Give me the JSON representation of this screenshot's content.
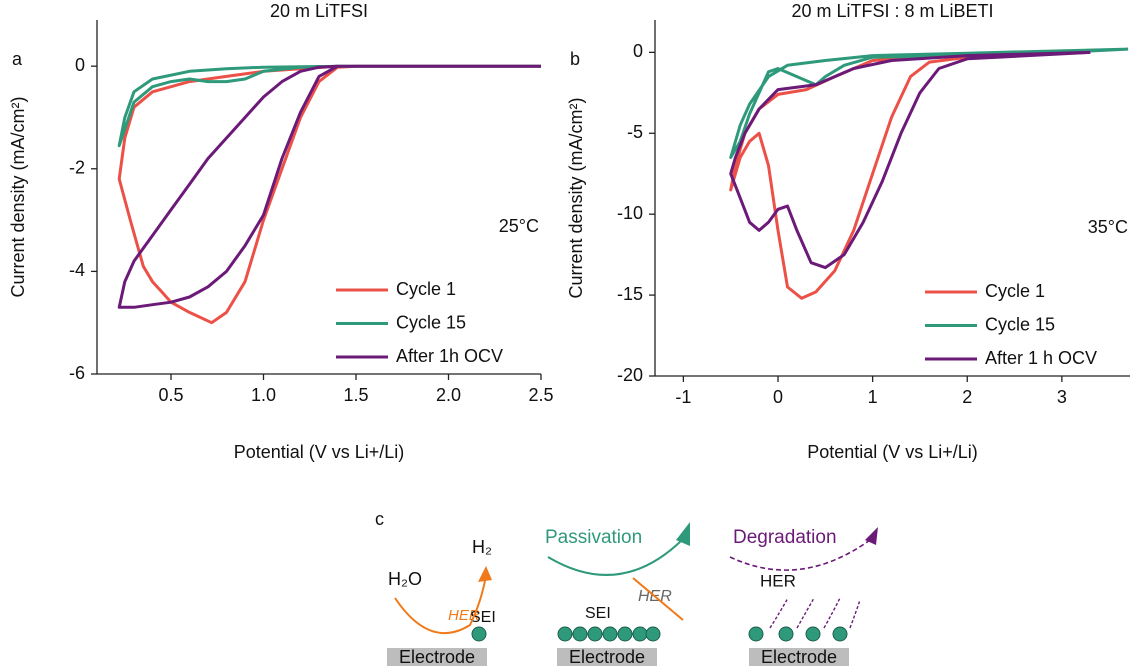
{
  "chart_data": [
    {
      "type": "line",
      "panel": "a",
      "title": "20 m LiTFSI",
      "x_label": "Potential (V vs Li+/Li)",
      "y_label": "Current density (mA/cm²)",
      "annotation": "25°C",
      "xlim": [
        0.1,
        2.5
      ],
      "ylim": [
        -6,
        0.9
      ],
      "xticks": [
        0.5,
        {
          "value": 1,
          "label": "1.0"
        },
        1.5,
        {
          "value": 2,
          "label": "2.0"
        },
        2.5
      ],
      "yticks": [
        -6,
        -4,
        -2,
        0
      ],
      "legend": "lower right",
      "series": [
        {
          "name": "Cycle 1",
          "color": "#ec5147",
          "x": [
            2.5,
            2.0,
            1.5,
            1.4,
            1.3,
            1.2,
            1.1,
            1.0,
            0.9,
            0.8,
            0.72,
            0.6,
            0.5,
            0.45,
            0.4,
            0.35,
            0.28,
            0.22,
            0.25,
            0.3,
            0.4,
            0.6,
            0.8,
            1.0,
            1.2,
            1.4
          ],
          "values": [
            0,
            0,
            0,
            -0.02,
            -0.3,
            -1.0,
            -2.0,
            -3.0,
            -4.2,
            -4.8,
            -5.0,
            -4.8,
            -4.6,
            -4.4,
            -4.2,
            -3.9,
            -3.0,
            -2.2,
            -1.4,
            -0.8,
            -0.5,
            -0.3,
            -0.2,
            -0.1,
            -0.05,
            0
          ]
        },
        {
          "name": "Cycle 15",
          "color": "#2f9a7b",
          "x": [
            2.5,
            1.4,
            1.2,
            1.0,
            0.9,
            0.8,
            0.7,
            0.6,
            0.5,
            0.4,
            0.3,
            0.22,
            0.25,
            0.3,
            0.4,
            0.6,
            0.8,
            1.0,
            1.4
          ],
          "values": [
            0,
            0,
            -0.02,
            -0.1,
            -0.25,
            -0.3,
            -0.3,
            -0.25,
            -0.3,
            -0.4,
            -0.7,
            -1.55,
            -1.0,
            -0.5,
            -0.25,
            -0.1,
            -0.05,
            -0.02,
            0
          ]
        },
        {
          "name": "After 1h OCV",
          "color": "#6b1a78",
          "x": [
            2.5,
            1.4,
            1.3,
            1.2,
            1.1,
            1.0,
            0.9,
            0.8,
            0.7,
            0.6,
            0.5,
            0.4,
            0.3,
            0.22,
            0.25,
            0.3,
            0.4,
            0.5,
            0.6,
            0.7,
            0.8,
            0.9,
            1.0,
            1.1,
            1.2,
            1.3,
            1.4
          ],
          "values": [
            0,
            0,
            -0.2,
            -0.9,
            -1.8,
            -2.9,
            -3.5,
            -4.0,
            -4.3,
            -4.5,
            -4.6,
            -4.65,
            -4.7,
            -4.7,
            -4.2,
            -3.8,
            -3.3,
            -2.8,
            -2.3,
            -1.8,
            -1.4,
            -1.0,
            -0.6,
            -0.3,
            -0.1,
            -0.02,
            0
          ]
        }
      ]
    },
    {
      "type": "line",
      "panel": "b",
      "title": "20 m LiTFSI : 8 m LiBETI",
      "x_label": "Potential (V vs Li+/Li)",
      "y_label": "Current density (mA/cm²)",
      "annotation": "35°C",
      "xlim": [
        -1.3,
        3.72
      ],
      "ylim": [
        -20,
        2
      ],
      "xticks": [
        -1,
        0,
        1,
        2,
        3
      ],
      "yticks": [
        -20,
        -15,
        -10,
        -5,
        0
      ],
      "legend": "lower right",
      "series": [
        {
          "name": "Cycle 1",
          "color": "#ec5147",
          "x": [
            3.3,
            2.0,
            1.6,
            1.4,
            1.2,
            1.0,
            0.8,
            0.6,
            0.4,
            0.25,
            0.1,
            0,
            -0.1,
            -0.2,
            -0.3,
            -0.4,
            -0.5,
            -0.45,
            -0.35,
            -0.2,
            0,
            0.3,
            0.6,
            1.0,
            1.5,
            2,
            3.3
          ],
          "values": [
            0,
            -0.3,
            -0.6,
            -1.5,
            -4,
            -7.5,
            -11,
            -13.5,
            -14.8,
            -15.2,
            -14.5,
            -11,
            -7,
            -5,
            -5.5,
            -6.5,
            -8.5,
            -7,
            -5,
            -3.5,
            -2.6,
            -2.3,
            -1.5,
            -0.5,
            -0.3,
            -0.2,
            0
          ]
        },
        {
          "name": "Cycle 15",
          "color": "#2f9a7b",
          "x": [
            3.7,
            3,
            2,
            1.0,
            0.7,
            0.5,
            0.4,
            0.2,
            0.0,
            -0.1,
            -0.2,
            -0.3,
            -0.4,
            -0.5,
            -0.4,
            -0.3,
            -0.1,
            0.1,
            0.5,
            1.0,
            2,
            3.7
          ],
          "values": [
            0.2,
            0,
            -0.2,
            -0.3,
            -0.8,
            -1.5,
            -2.0,
            -1.5,
            -1.0,
            -1.2,
            -2.5,
            -3.8,
            -5.5,
            -6.5,
            -4.5,
            -3.2,
            -1.5,
            -0.8,
            -0.5,
            -0.2,
            -0.05,
            0.2
          ]
        },
        {
          "name": "After 1 h OCV",
          "color": "#6b1a78",
          "x": [
            3.3,
            2,
            1.7,
            1.5,
            1.3,
            1.1,
            0.9,
            0.7,
            0.5,
            0.35,
            0.2,
            0.1,
            0,
            -0.1,
            -0.2,
            -0.3,
            -0.4,
            -0.5,
            -0.45,
            -0.35,
            -0.2,
            0,
            0.4,
            0.8,
            1.2,
            2,
            3.3
          ],
          "values": [
            0,
            -0.4,
            -1.0,
            -2.5,
            -5,
            -8,
            -10.5,
            -12.5,
            -13.3,
            -13,
            -11,
            -9.5,
            -9.7,
            -10.5,
            -11,
            -10.5,
            -9,
            -7.5,
            -6.5,
            -5,
            -3.5,
            -2.3,
            -2,
            -1,
            -0.5,
            -0.2,
            0
          ]
        }
      ]
    }
  ],
  "diagram": {
    "panel": "c",
    "steps": [
      {
        "reactant": "H₂O",
        "product": "H₂",
        "reaction": "HER",
        "layer": "SEI",
        "substrate": "Electrode"
      },
      {
        "process": "Passivation",
        "reaction": "HER",
        "layer": "SEI",
        "substrate": "Electrode"
      },
      {
        "process": "Degradation",
        "reaction": "HER",
        "substrate": "Electrode"
      }
    ]
  }
}
